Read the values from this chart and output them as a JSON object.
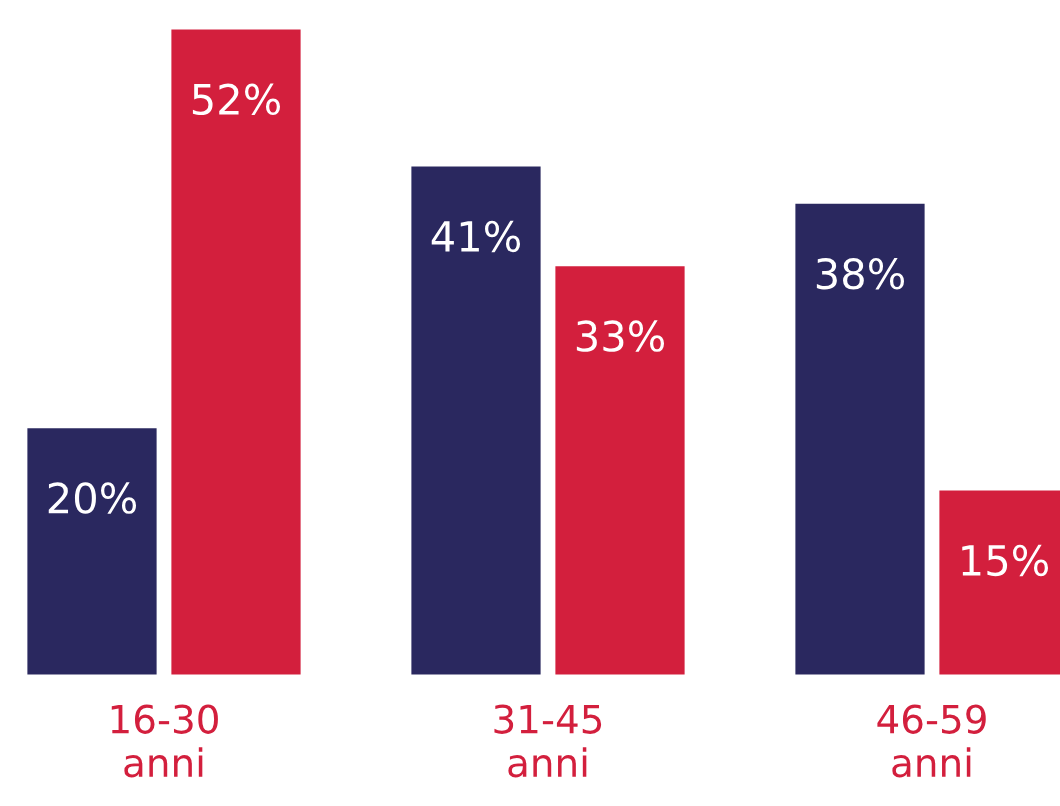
{
  "chart_data": {
    "type": "bar",
    "categories": [
      "16-30\nanni",
      "31-45\nanni",
      "46-59\nanni"
    ],
    "series": [
      {
        "color": "#2a285f",
        "values": [
          20,
          41,
          38
        ],
        "value_labels": [
          "20%",
          "41%",
          "38%"
        ]
      },
      {
        "color": "#d31f3d",
        "values": [
          52,
          33,
          15
        ],
        "value_labels": [
          "52%",
          "33%",
          "15%"
        ]
      }
    ],
    "grid": false,
    "legend": false
  }
}
